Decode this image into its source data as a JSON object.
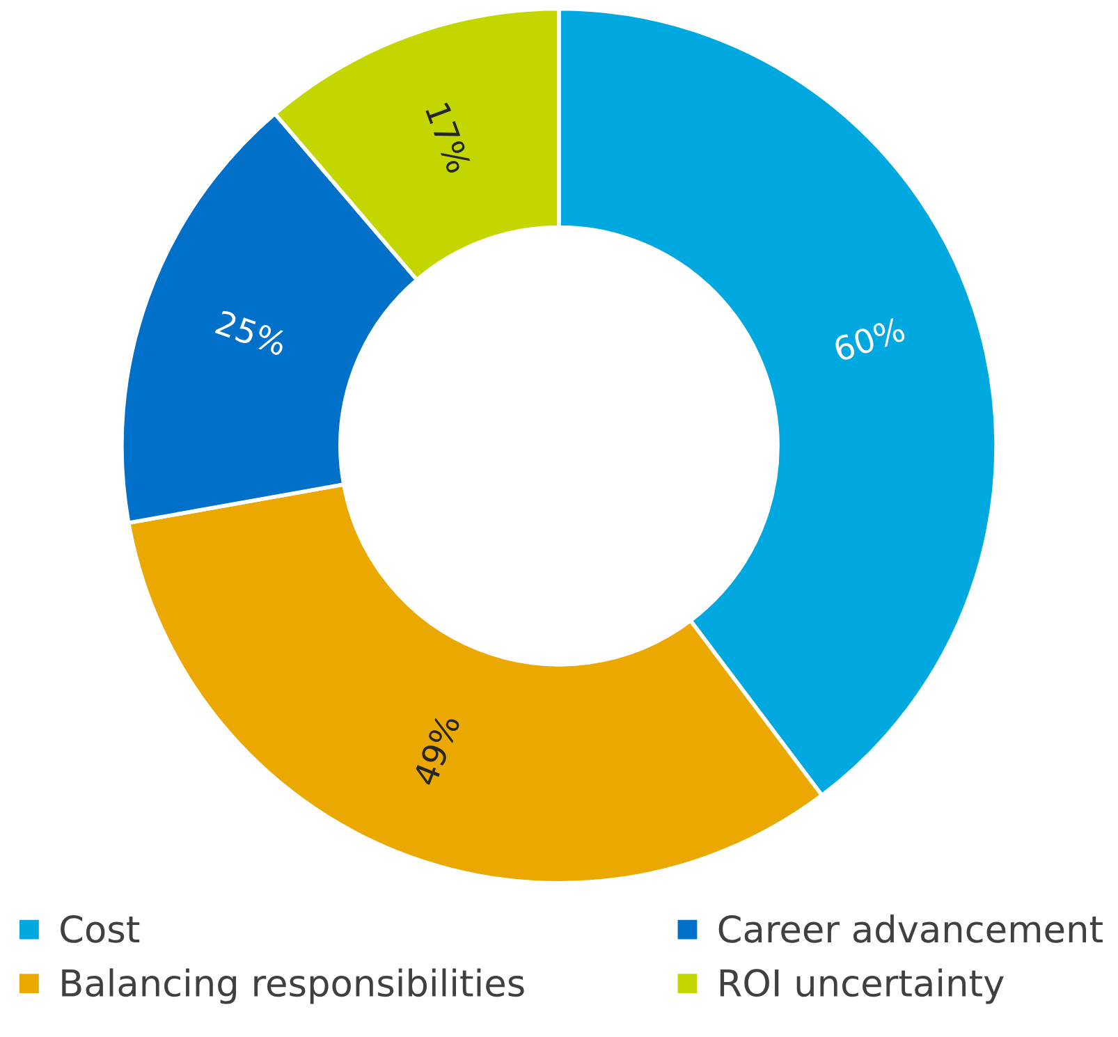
{
  "chart_data": {
    "type": "donut",
    "categories": [
      "Cost",
      "Balancing responsibilities",
      "Career advancement",
      "ROI uncertainty"
    ],
    "values": [
      60,
      49,
      25,
      17
    ],
    "value_labels": [
      "60%",
      "49%",
      "25%",
      "17%"
    ],
    "colors": [
      "#00a8e0",
      "#eba800",
      "#0070c8",
      "#c4d600"
    ],
    "legend": "bottom"
  }
}
